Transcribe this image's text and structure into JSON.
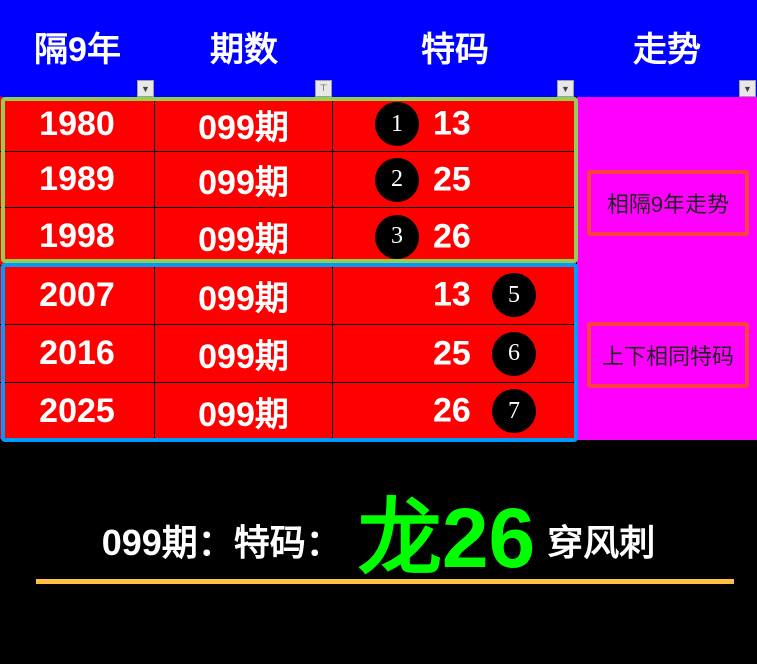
{
  "header": {
    "columns": [
      "隔9年",
      "期数",
      "特码",
      "走势"
    ]
  },
  "colors": {
    "header_bg": "#0000ff",
    "row_bg": "#ff0000",
    "side_bg": "#ff00ff",
    "group1_border": "#92d050",
    "group2_border": "#0099ff",
    "highlight": "#00ff00",
    "underline": "#ffc040"
  },
  "rows": [
    {
      "year": "1980",
      "period": "099期",
      "code": "13",
      "mark": "1"
    },
    {
      "year": "1989",
      "period": "099期",
      "code": "25",
      "mark": "2"
    },
    {
      "year": "1998",
      "period": "099期",
      "code": "26",
      "mark": "3"
    },
    {
      "year": "2007",
      "period": "099期",
      "code": "13",
      "mark": "5"
    },
    {
      "year": "2016",
      "period": "099期",
      "code": "25",
      "mark": "6"
    },
    {
      "year": "2025",
      "period": "099期",
      "code": "26",
      "mark": "7"
    }
  ],
  "side": {
    "button1": "相隔9年走势",
    "button2": "上下相同特码"
  },
  "footer": {
    "prefix": "099期：特码：",
    "highlight": "龙26",
    "suffix": "穿风刺"
  }
}
